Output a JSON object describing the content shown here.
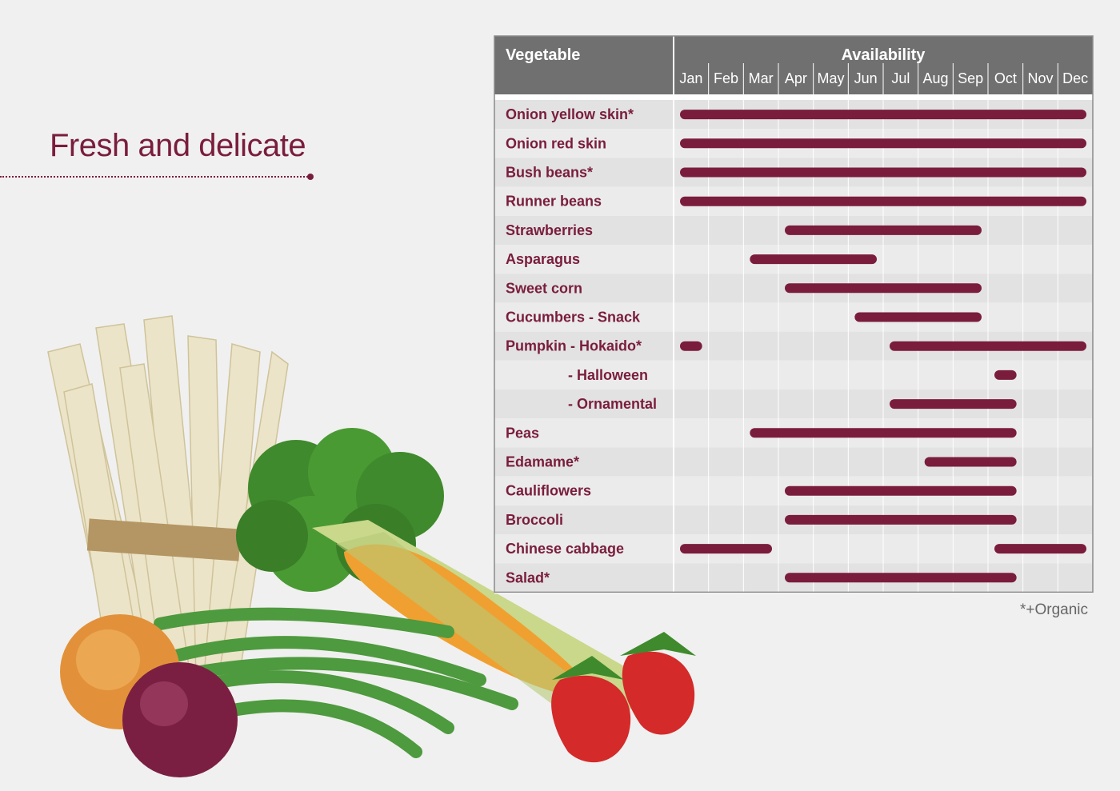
{
  "page": {
    "title": "Fresh and delicate",
    "footnote": "*+Organic"
  },
  "colors": {
    "accent": "#7a1d3c",
    "header_bg": "#707070",
    "row_dark": "#e2e2e2",
    "row_light": "#ebebeb",
    "page_bg": "#f0f0f0"
  },
  "chart_data": {
    "type": "table",
    "header": {
      "vegetable": "Vegetable",
      "availability": "Availability"
    },
    "months": [
      "Jan",
      "Feb",
      "Mar",
      "Apr",
      "May",
      "Jun",
      "Jul",
      "Aug",
      "Sep",
      "Oct",
      "Nov",
      "Dec"
    ],
    "rows": [
      {
        "name": "Onion yellow skin*",
        "indent": false,
        "periods": [
          [
            1,
            12
          ]
        ]
      },
      {
        "name": "Onion red skin",
        "indent": false,
        "periods": [
          [
            1,
            12
          ]
        ]
      },
      {
        "name": "Bush beans*",
        "indent": false,
        "periods": [
          [
            1,
            12
          ]
        ]
      },
      {
        "name": "Runner beans",
        "indent": false,
        "periods": [
          [
            1,
            12
          ]
        ]
      },
      {
        "name": "Strawberries",
        "indent": false,
        "periods": [
          [
            4,
            9
          ]
        ]
      },
      {
        "name": "Asparagus",
        "indent": false,
        "periods": [
          [
            3,
            6
          ]
        ]
      },
      {
        "name": "Sweet corn",
        "indent": false,
        "periods": [
          [
            4,
            9
          ]
        ]
      },
      {
        "name": "Cucumbers - Snack",
        "indent": false,
        "periods": [
          [
            6,
            9
          ]
        ]
      },
      {
        "name": "Pumpkin - Hokaido*",
        "indent": false,
        "periods": [
          [
            1,
            1
          ],
          [
            7,
            12
          ]
        ]
      },
      {
        "name": "- Halloween",
        "indent": true,
        "periods": [
          [
            10,
            10
          ]
        ]
      },
      {
        "name": "- Ornamental",
        "indent": true,
        "periods": [
          [
            7,
            10
          ]
        ]
      },
      {
        "name": "Peas",
        "indent": false,
        "periods": [
          [
            3,
            10
          ]
        ]
      },
      {
        "name": "Edamame*",
        "indent": false,
        "periods": [
          [
            8,
            10
          ]
        ]
      },
      {
        "name": "Cauliflowers",
        "indent": false,
        "periods": [
          [
            4,
            10
          ]
        ]
      },
      {
        "name": "Broccoli",
        "indent": false,
        "periods": [
          [
            4,
            10
          ]
        ]
      },
      {
        "name": "Chinese cabbage",
        "indent": false,
        "periods": [
          [
            1,
            3
          ],
          [
            10,
            12
          ]
        ]
      },
      {
        "name": "Salad*",
        "indent": false,
        "periods": [
          [
            4,
            10
          ]
        ]
      }
    ]
  }
}
